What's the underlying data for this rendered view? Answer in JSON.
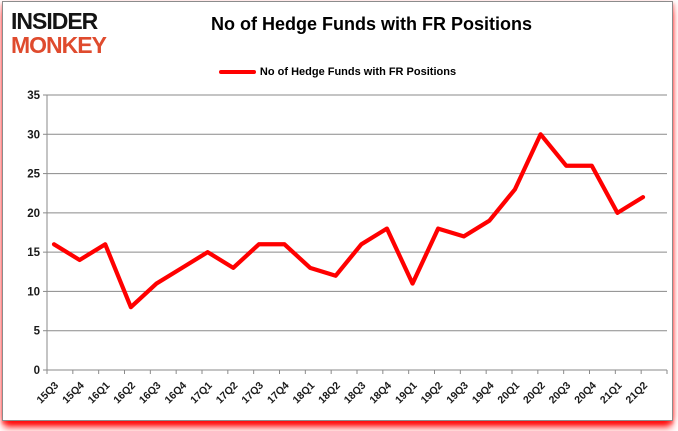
{
  "logo": {
    "line1": "INSIDER",
    "line2": "MONKEY",
    "line1_color": "#141414",
    "line2_color": "#df4b2e"
  },
  "header": {
    "title": "No of Hedge Funds with FR Positions"
  },
  "legend": {
    "label": "No of Hedge Funds with FR Positions",
    "line_color": "#ff0000"
  },
  "chart_data": {
    "type": "line",
    "title": "No of Hedge Funds with FR Positions",
    "categories": [
      "15Q3",
      "15Q4",
      "16Q1",
      "16Q2",
      "16Q3",
      "16Q4",
      "17Q1",
      "17Q2",
      "17Q3",
      "17Q4",
      "18Q1",
      "18Q2",
      "18Q3",
      "18Q4",
      "19Q1",
      "19Q2",
      "19Q3",
      "19Q4",
      "20Q1",
      "20Q2",
      "20Q3",
      "20Q4",
      "21Q1",
      "21Q2"
    ],
    "series": [
      {
        "name": "No of Hedge Funds with FR Positions",
        "color": "#ff0000",
        "values": [
          16,
          14,
          16,
          8,
          11,
          13,
          15,
          13,
          16,
          16,
          13,
          12,
          16,
          18,
          11,
          18,
          17,
          19,
          23,
          30,
          26,
          26,
          20,
          22
        ]
      }
    ],
    "xlabel": "",
    "ylabel": "",
    "ylim": [
      0,
      35
    ],
    "yticks": [
      0,
      5,
      10,
      15,
      20,
      25,
      30,
      35
    ],
    "grid": true,
    "legend_position": "top-center"
  },
  "colors": {
    "grid": "#8a8a8a",
    "axis": "#8a8a8a",
    "tick_text": "#1a1a1a",
    "background": "#ffffff",
    "card_border": "#8c8c8c",
    "glow": "#ff0000"
  }
}
